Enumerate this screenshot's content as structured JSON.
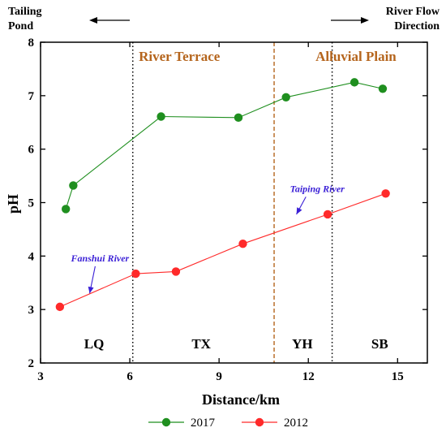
{
  "chart_data": {
    "type": "line",
    "xlabel": "Distance/km",
    "ylabel": "pH",
    "xlim": [
      3,
      16
    ],
    "ylim": [
      2,
      8
    ],
    "xticks": [
      3,
      6,
      9,
      12,
      15
    ],
    "yticks": [
      2,
      3,
      4,
      5,
      6,
      7,
      8
    ],
    "grid": false,
    "legend_position": "bottom",
    "series": [
      {
        "name": "2017",
        "color": "#1f8f1f",
        "points": [
          [
            3.85,
            4.88
          ],
          [
            4.1,
            5.32
          ],
          [
            7.05,
            6.61
          ],
          [
            9.65,
            6.59
          ],
          [
            11.25,
            6.97
          ],
          [
            13.55,
            7.25
          ],
          [
            14.5,
            7.13
          ]
        ]
      },
      {
        "name": "2012",
        "color": "#ff2a2a",
        "points": [
          [
            3.65,
            3.05
          ],
          [
            6.2,
            3.67
          ],
          [
            7.55,
            3.71
          ],
          [
            9.8,
            4.23
          ],
          [
            12.65,
            4.78
          ],
          [
            14.6,
            5.17
          ]
        ]
      }
    ],
    "vlines": [
      {
        "x": 6.1,
        "style": "dotted",
        "color": "#000000"
      },
      {
        "x": 10.85,
        "style": "dashed",
        "color": "#b5651d"
      },
      {
        "x": 12.8,
        "style": "dotted",
        "color": "#000000"
      }
    ],
    "regions": [
      {
        "label": "River Terrace",
        "x": 6.3,
        "y": 7.65
      },
      {
        "label": "Alluvial Plain",
        "x": 13.6,
        "y": 7.65
      }
    ],
    "zones": [
      {
        "label": "LQ",
        "x": 4.8,
        "y": 2.27
      },
      {
        "label": "TX",
        "x": 8.4,
        "y": 2.27
      },
      {
        "label": "YH",
        "x": 11.8,
        "y": 2.27
      },
      {
        "label": "SB",
        "x": 14.4,
        "y": 2.27
      }
    ],
    "annotations": [
      {
        "label": "Fanshui River",
        "x": 5.0,
        "y": 3.9,
        "arrow_to": [
          4.65,
          3.3
        ]
      },
      {
        "label": "Taiping River",
        "x": 12.3,
        "y": 5.2,
        "arrow_to": [
          11.6,
          4.78
        ]
      }
    ],
    "corner_notes": {
      "left": {
        "line1": "Tailing",
        "line2": "Pond",
        "arrow": "left"
      },
      "right": {
        "line1": "River Flow",
        "line2": "Direction",
        "arrow": "right"
      }
    }
  }
}
